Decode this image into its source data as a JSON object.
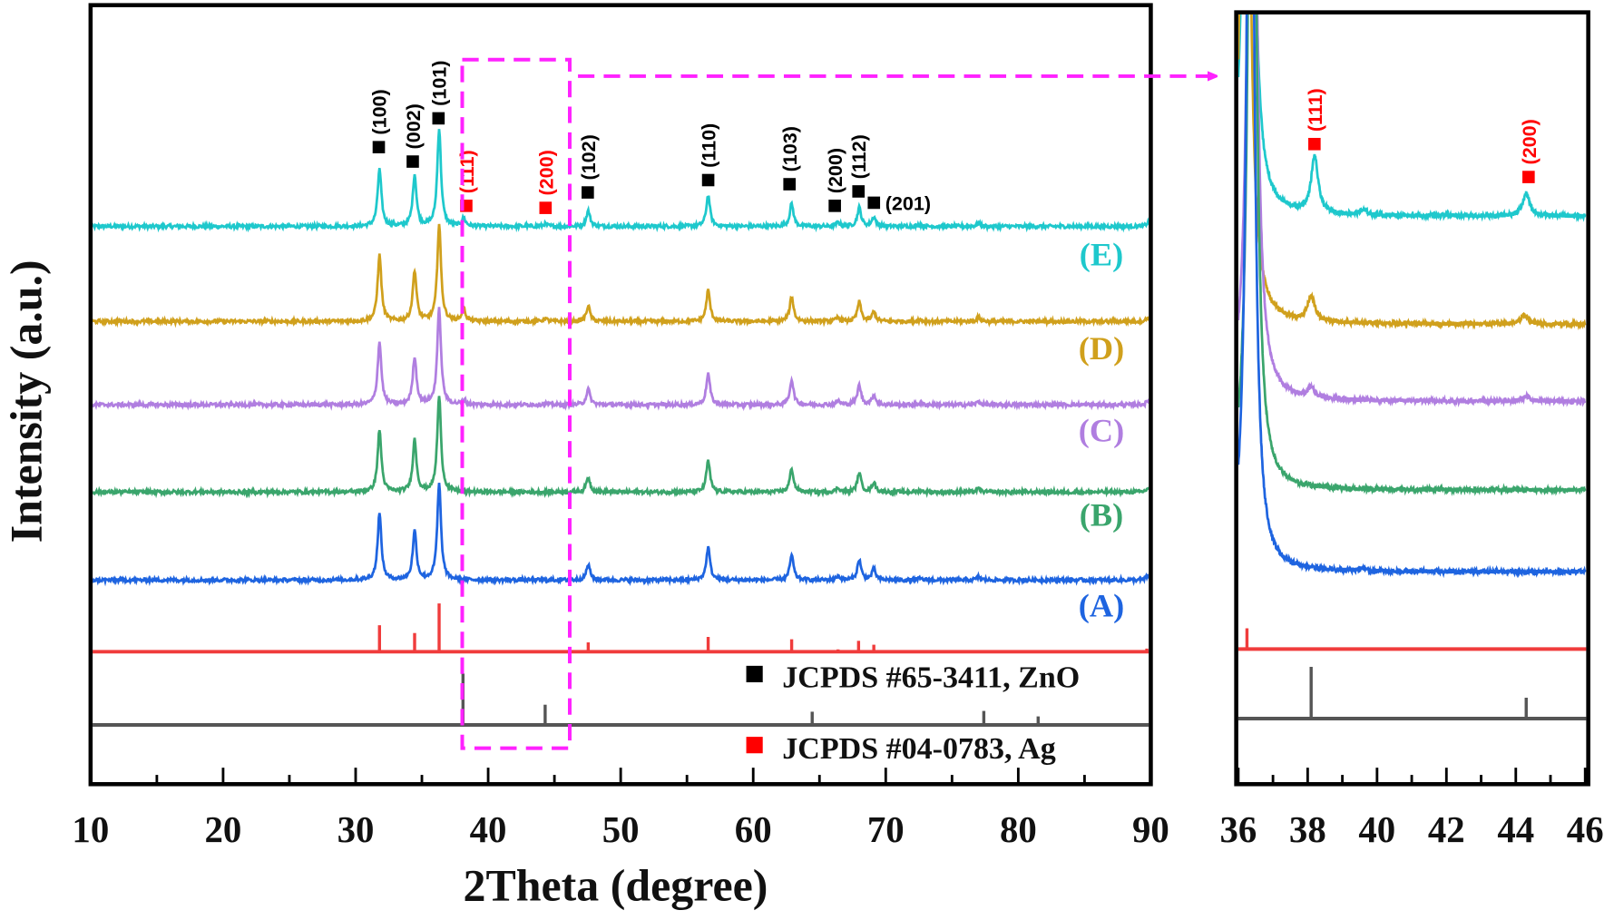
{
  "chart_data": [
    {
      "type": "line",
      "xlabel": "2Theta (degree)",
      "ylabel": "Intensity (a.u.)",
      "xlim": [
        10,
        90
      ],
      "ylim": [
        0,
        100
      ],
      "x_ticks": [
        10,
        20,
        30,
        40,
        50,
        60,
        70,
        80,
        90
      ],
      "x_tick_labels": [
        "10",
        "20",
        "30",
        "40",
        "50",
        "60",
        "70",
        "80",
        "90"
      ],
      "minor_tick_step": 5,
      "grid": false,
      "series": [
        {
          "name": "(E)",
          "color": "#1ec8cc",
          "offset": 71.6,
          "peaks": [
            [
              31.8,
              7.3
            ],
            [
              34.45,
              6.6
            ],
            [
              36.3,
              12.5
            ],
            [
              38.15,
              1.0
            ],
            [
              44.3,
              0.3
            ],
            [
              47.55,
              2.0
            ],
            [
              56.6,
              4.0
            ],
            [
              62.9,
              2.9
            ],
            [
              66.4,
              0.5
            ],
            [
              68.0,
              2.4
            ],
            [
              69.1,
              1.2
            ],
            [
              72.6,
              0.2
            ],
            [
              77.0,
              0.4
            ],
            [
              89.8,
              0.5
            ]
          ]
        },
        {
          "name": "(D)",
          "color": "#d0a01c",
          "offset": 59.4,
          "peaks": [
            [
              31.8,
              8.5
            ],
            [
              34.45,
              6.5
            ],
            [
              36.3,
              12.4
            ],
            [
              38.15,
              1.6
            ],
            [
              44.3,
              0.4
            ],
            [
              47.55,
              2.0
            ],
            [
              56.6,
              4.0
            ],
            [
              62.9,
              3.2
            ],
            [
              66.4,
              0.5
            ],
            [
              68.0,
              2.5
            ],
            [
              69.1,
              1.2
            ],
            [
              72.6,
              0.2
            ],
            [
              77.0,
              0.5
            ],
            [
              89.8,
              0.5
            ]
          ]
        },
        {
          "name": "(C)",
          "color": "#b07ee0",
          "offset": 48.7,
          "peaks": [
            [
              31.8,
              8.0
            ],
            [
              34.45,
              6.1
            ],
            [
              36.3,
              12.3
            ],
            [
              38.15,
              0.5
            ],
            [
              44.3,
              0.2
            ],
            [
              47.55,
              2.0
            ],
            [
              56.6,
              4.0
            ],
            [
              62.9,
              3.2
            ],
            [
              66.4,
              0.5
            ],
            [
              68.0,
              2.5
            ],
            [
              69.1,
              1.2
            ],
            [
              72.6,
              0.2
            ],
            [
              77.0,
              0.4
            ],
            [
              89.8,
              0.5
            ]
          ]
        },
        {
          "name": "(B)",
          "color": "#3aa56c",
          "offset": 37.5,
          "peaks": [
            [
              31.8,
              7.9
            ],
            [
              34.45,
              6.7
            ],
            [
              36.3,
              12.3
            ],
            [
              47.55,
              1.9
            ],
            [
              56.6,
              4.0
            ],
            [
              62.9,
              3.0
            ],
            [
              66.4,
              0.5
            ],
            [
              68.0,
              2.5
            ],
            [
              69.1,
              1.2
            ],
            [
              72.6,
              0.2
            ],
            [
              77.0,
              0.4
            ],
            [
              89.8,
              0.5
            ]
          ]
        },
        {
          "name": "(A)",
          "color": "#1e64e0",
          "offset": 26.2,
          "peaks": [
            [
              31.8,
              8.5
            ],
            [
              34.45,
              6.3
            ],
            [
              36.3,
              12.3
            ],
            [
              47.55,
              2.0
            ],
            [
              56.6,
              4.2
            ],
            [
              62.9,
              3.2
            ],
            [
              66.4,
              0.5
            ],
            [
              68.0,
              2.6
            ],
            [
              69.1,
              1.4
            ],
            [
              72.6,
              0.2
            ],
            [
              77.0,
              0.4
            ],
            [
              89.8,
              0.6
            ]
          ]
        }
      ],
      "reference_patterns": [
        {
          "color": "#f03c3c",
          "offset": 17.0,
          "sticks": [
            [
              31.8,
              3.4
            ],
            [
              34.45,
              2.4
            ],
            [
              36.3,
              6.2
            ],
            [
              47.55,
              1.2
            ],
            [
              56.6,
              1.9
            ],
            [
              62.9,
              1.6
            ],
            [
              66.4,
              0.3
            ],
            [
              67.95,
              1.4
            ],
            [
              69.1,
              0.9
            ],
            [
              72.6,
              0.2
            ],
            [
              77.0,
              0.2
            ],
            [
              89.7,
              0.4
            ]
          ]
        },
        {
          "color": "#555555",
          "offset": 7.6,
          "sticks": [
            [
              38.1,
              6.6
            ],
            [
              44.3,
              2.6
            ],
            [
              64.45,
              1.7
            ],
            [
              77.4,
              1.8
            ],
            [
              81.5,
              1.1
            ]
          ]
        }
      ],
      "annotations": [
        {
          "text": "(100)",
          "color": "#000000",
          "x": 31.8
        },
        {
          "text": "(002)",
          "color": "#000000",
          "x": 34.4
        },
        {
          "text": "(101)",
          "color": "#000000",
          "x": 36.3
        },
        {
          "text": "(111)",
          "color": "#ff0000",
          "x": 38.1
        },
        {
          "text": "(200)",
          "color": "#ff0000",
          "x": 44.3
        },
        {
          "text": "(102)",
          "color": "#000000",
          "x": 47.5
        },
        {
          "text": "(110)",
          "color": "#000000",
          "x": 56.6
        },
        {
          "text": "(103)",
          "color": "#000000",
          "x": 62.9
        },
        {
          "text": "(200)",
          "color": "#000000",
          "x": 66.4
        },
        {
          "text": "(112)",
          "color": "#000000",
          "x": 68.0
        },
        {
          "text": "(201)",
          "color": "#000000",
          "x": 69.1
        }
      ],
      "legend": [
        {
          "marker_color": "#000000",
          "text": "JCPDS #65-3411,  ZnO"
        },
        {
          "marker_color": "#ff0000",
          "text": "JCPDS #04-0783,  Ag"
        }
      ],
      "zoom_box": {
        "xrange": [
          37.5,
          46
        ],
        "color": "#ff22ff"
      }
    },
    {
      "type": "line",
      "xlim": [
        36,
        46
      ],
      "ylim": [
        0,
        100
      ],
      "x_ticks": [
        36,
        38,
        40,
        42,
        44,
        46
      ],
      "x_tick_labels": [
        "36",
        "38",
        "40",
        "42",
        "44",
        "46"
      ],
      "minor_tick_step": 1,
      "grid": false,
      "series": [
        {
          "color": "#1ec8cc",
          "offset": 73.6,
          "peaks": [
            [
              36.3,
              130
            ],
            [
              38.2,
              7.3
            ],
            [
              39.6,
              0.6
            ],
            [
              44.3,
              2.9
            ]
          ]
        },
        {
          "color": "#d0a01c",
          "offset": 59.6,
          "peaks": [
            [
              36.2,
              130
            ],
            [
              38.1,
              3.3
            ],
            [
              44.25,
              1.2
            ]
          ]
        },
        {
          "color": "#b07ee0",
          "offset": 49.6,
          "peaks": [
            [
              36.4,
              130
            ],
            [
              38.1,
              1.3
            ],
            [
              44.3,
              0.6
            ]
          ]
        },
        {
          "color": "#3aa56c",
          "offset": 38.1,
          "peaks": [
            [
              36.4,
              130
            ]
          ]
        },
        {
          "color": "#1e64e0",
          "offset": 27.5,
          "peaks": [
            [
              36.35,
              130
            ],
            [
              39.6,
              0.3
            ]
          ]
        }
      ],
      "reference_patterns": [
        {
          "color": "#f03c3c",
          "offset": 17.5,
          "sticks": [
            [
              36.25,
              2.7
            ]
          ]
        },
        {
          "color": "#555555",
          "offset": 8.5,
          "sticks": [
            [
              38.1,
              6.7
            ],
            [
              44.3,
              2.7
            ]
          ]
        }
      ],
      "annotations": [
        {
          "text": "(111)",
          "color": "#ff0000",
          "x": 38.2
        },
        {
          "text": "(200)",
          "color": "#ff0000",
          "x": 44.3
        }
      ]
    }
  ]
}
